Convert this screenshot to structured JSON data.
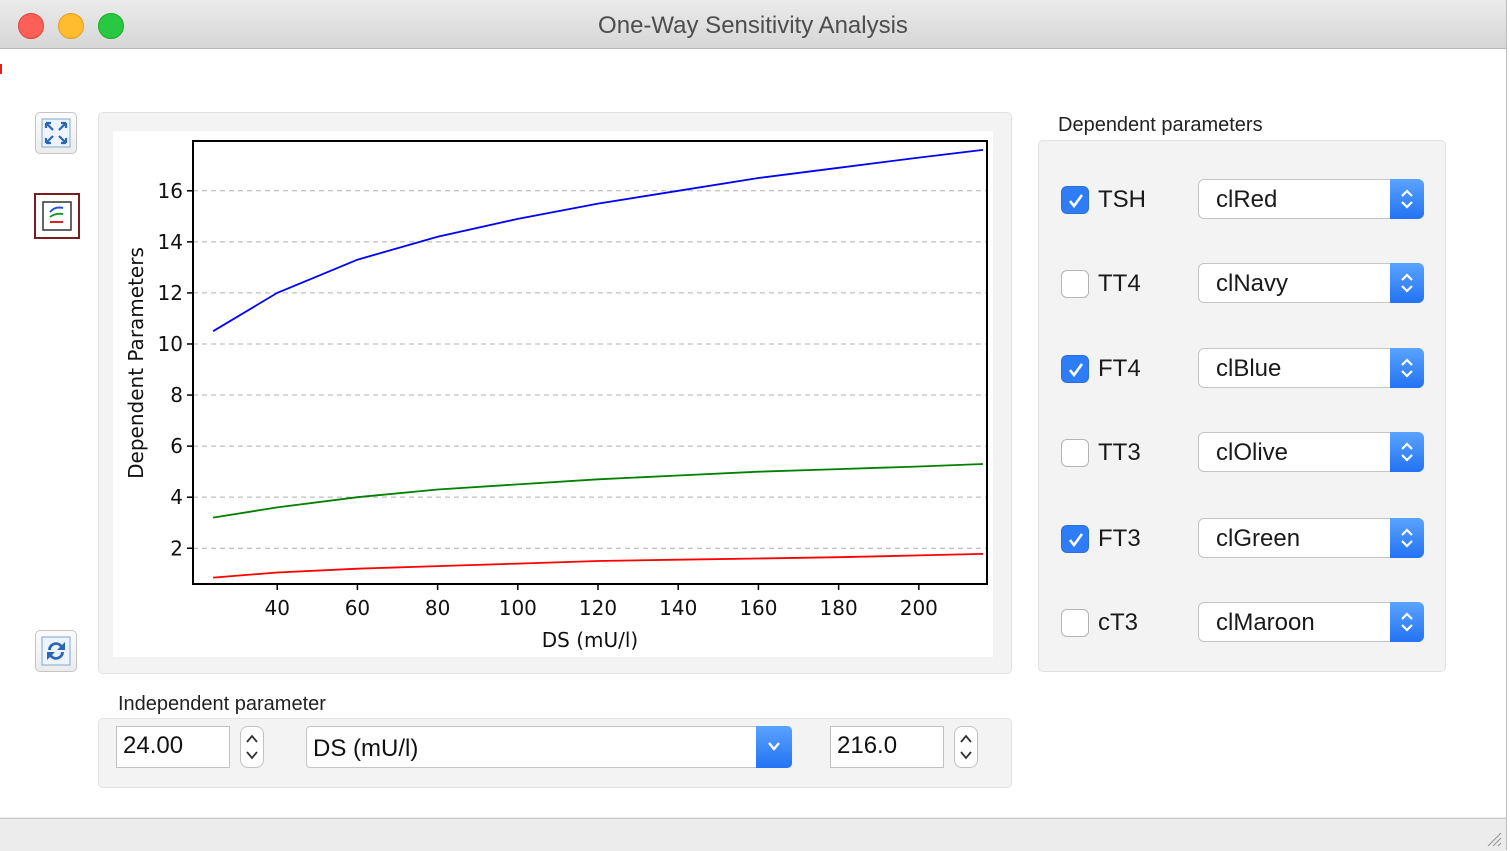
{
  "window": {
    "title": "One-Way Sensitivity Analysis"
  },
  "toolbar": [
    {
      "icon": "fit-to-window-icon"
    },
    {
      "icon": "series-legend-icon",
      "selected": true
    },
    {
      "icon": "refresh-icon"
    }
  ],
  "dependent": {
    "title": "Dependent parameters",
    "rows": [
      {
        "label": "TSH",
        "checked": true,
        "color_name": "clRed"
      },
      {
        "label": "TT4",
        "checked": false,
        "color_name": "clNavy"
      },
      {
        "label": "FT4",
        "checked": true,
        "color_name": "clBlue"
      },
      {
        "label": "TT3",
        "checked": false,
        "color_name": "clOlive"
      },
      {
        "label": "FT3",
        "checked": true,
        "color_name": "clGreen"
      },
      {
        "label": "cT3",
        "checked": false,
        "color_name": "clMaroon"
      }
    ]
  },
  "independent": {
    "title": "Independent parameter",
    "min_value": "24.00",
    "parameter": "DS (mU/l)",
    "max_value": "216.0"
  },
  "chart_data": {
    "type": "line",
    "xlabel": "DS (mU/l)",
    "ylabel": "Dependent Parameters",
    "xlim": [
      19,
      217
    ],
    "ylim": [
      0.6,
      17.95
    ],
    "xticks": [
      40,
      60,
      80,
      100,
      120,
      140,
      160,
      180,
      200
    ],
    "yticks": [
      2,
      4,
      6,
      8,
      10,
      12,
      14,
      16
    ],
    "grid": "horizontal-dashed",
    "x": [
      24,
      40,
      60,
      80,
      100,
      120,
      140,
      160,
      180,
      200,
      216
    ],
    "series": [
      {
        "color": "#0000ff",
        "values": [
          10.5,
          12.0,
          13.3,
          14.2,
          14.9,
          15.5,
          16.0,
          16.5,
          16.9,
          17.3,
          17.6
        ]
      },
      {
        "color": "#008000",
        "values": [
          3.2,
          3.6,
          4.0,
          4.3,
          4.5,
          4.7,
          4.85,
          5.0,
          5.1,
          5.2,
          5.3
        ]
      },
      {
        "color": "#ff0000",
        "values": [
          0.85,
          1.05,
          1.2,
          1.3,
          1.4,
          1.5,
          1.55,
          1.6,
          1.65,
          1.72,
          1.78
        ]
      }
    ]
  }
}
